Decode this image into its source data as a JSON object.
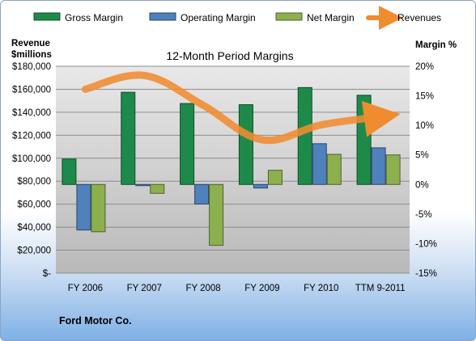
{
  "company": "Ford Motor Co.",
  "chart_data": {
    "type": "bar",
    "title": "12-Month Period Margins",
    "left_axis_title_line1": "Revenue",
    "left_axis_title_line2": "$millions",
    "right_axis_title": "Margin %",
    "categories": [
      "FY 2006",
      "FY 2007",
      "FY 2008",
      "FY 2009",
      "FY 2010",
      "TTM 9-2011"
    ],
    "y_left_range": [
      0,
      180000
    ],
    "y_left_ticks": [
      "$-",
      "$20,000",
      "$40,000",
      "$60,000",
      "$80,000",
      "$100,000",
      "$120,000",
      "$140,000",
      "$160,000",
      "$180,000"
    ],
    "y_right_range": [
      -15,
      20
    ],
    "y_right_ticks": [
      "-15%",
      "-10%",
      "-5%",
      "0%",
      "5%",
      "10%",
      "15%",
      "20%"
    ],
    "grid": true,
    "legend_position": "top",
    "series": [
      {
        "name": "Gross Margin",
        "axis": "right",
        "color": "#1e8a4a",
        "values": [
          4.3,
          15.6,
          13.7,
          13.5,
          16.4,
          15.1
        ]
      },
      {
        "name": "Operating Margin",
        "axis": "right",
        "color": "#4f81bd",
        "values": [
          -7.7,
          -0.2,
          -3.3,
          -0.6,
          6.9,
          6.2
        ]
      },
      {
        "name": "Net Margin",
        "axis": "right",
        "color": "#8db04e",
        "values": [
          -8.0,
          -1.5,
          -10.3,
          2.4,
          5.1,
          5.0
        ]
      },
      {
        "name": "Revenues",
        "axis": "left",
        "type": "line",
        "color": "#f08c30",
        "values": [
          160000,
          172000,
          146000,
          116000,
          129000,
          136000
        ]
      }
    ]
  }
}
